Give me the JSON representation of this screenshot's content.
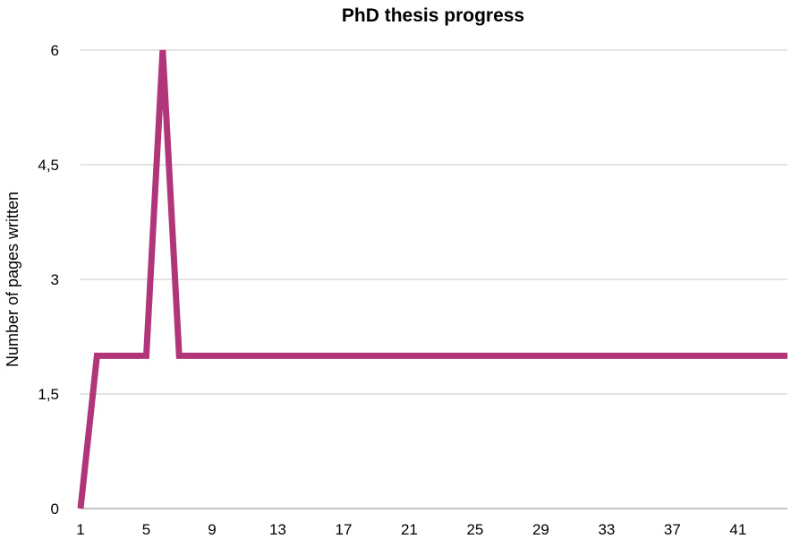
{
  "chart_data": {
    "type": "line",
    "title": "PhD thesis progress",
    "xlabel": "",
    "ylabel": "Number of pages written",
    "x": [
      1,
      2,
      3,
      4,
      5,
      6,
      7,
      8,
      9,
      10,
      11,
      12,
      13,
      14,
      15,
      16,
      17,
      18,
      19,
      20,
      21,
      22,
      23,
      24,
      25,
      26,
      27,
      28,
      29,
      30,
      31,
      32,
      33,
      34,
      35,
      36,
      37,
      38,
      39,
      40,
      41,
      42,
      43,
      44
    ],
    "series": [
      {
        "name": "",
        "values": [
          0,
          2,
          2,
          2,
          2,
          6,
          2,
          2,
          2,
          2,
          2,
          2,
          2,
          2,
          2,
          2,
          2,
          2,
          2,
          2,
          2,
          2,
          2,
          2,
          2,
          2,
          2,
          2,
          2,
          2,
          2,
          2,
          2,
          2,
          2,
          2,
          2,
          2,
          2,
          2,
          2,
          2,
          2,
          2
        ]
      }
    ],
    "xticks": [
      "1",
      "5",
      "9",
      "13",
      "17",
      "21",
      "25",
      "29",
      "33",
      "37",
      "41"
    ],
    "yticks": [
      "0",
      "1,5",
      "3",
      "4,5",
      "6"
    ],
    "ylim": [
      0,
      6
    ],
    "xlim": [
      1,
      44
    ],
    "grid": "horizontal",
    "legend": "none",
    "colors": {
      "series": "#b13579",
      "grid": "#c8c8c8"
    }
  }
}
